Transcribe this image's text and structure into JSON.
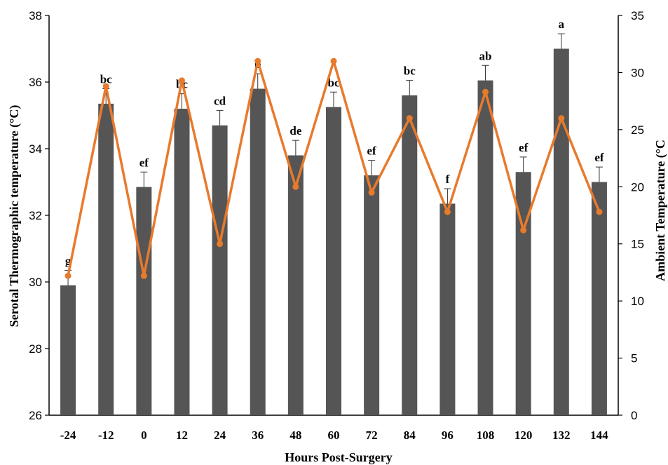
{
  "chart_data": {
    "type": "bar",
    "title": "",
    "xlabel": "Hours Post-Surgery",
    "ylabel": "Serotal Thermographic  temperature  (°C)",
    "y2label": "Ambient  Temperature  (°C",
    "categories": [
      "-24",
      "-12",
      "0",
      "12",
      "24",
      "36",
      "48",
      "60",
      "72",
      "84",
      "96",
      "108",
      "120",
      "132",
      "144"
    ],
    "ylim": [
      26,
      38
    ],
    "yticks": [
      "26",
      "28",
      "30",
      "32",
      "34",
      "36",
      "38"
    ],
    "y2lim": [
      0,
      35
    ],
    "y2ticks": [
      "0",
      "5",
      "10",
      "15",
      "20",
      "25",
      "30",
      "35"
    ],
    "series": [
      {
        "name": "",
        "axis": "left",
        "kind": "bar",
        "values": [
          29.9,
          35.35,
          32.85,
          35.2,
          34.7,
          35.8,
          33.8,
          35.25,
          33.2,
          35.6,
          32.35,
          36.05,
          33.3,
          37.0,
          33.0
        ],
        "errors": [
          0.45,
          0.45,
          0.45,
          0.45,
          0.45,
          0.45,
          0.45,
          0.45,
          0.45,
          0.45,
          0.45,
          0.45,
          0.45,
          0.45,
          0.45
        ],
        "significance": [
          "g",
          "bc",
          "ef",
          "bc",
          "cd",
          "b",
          "de",
          "bc",
          "ef",
          "bc",
          "f",
          "ab",
          "ef",
          "a",
          "ef"
        ],
        "color": "#555555"
      },
      {
        "name": "",
        "axis": "right",
        "kind": "line",
        "values": [
          12.2,
          28.8,
          12.2,
          29.3,
          15.0,
          31.0,
          20.0,
          31.0,
          19.5,
          26.0,
          17.8,
          28.3,
          16.2,
          26.0,
          17.8
        ],
        "color": "#E87A2C"
      }
    ],
    "grid": false,
    "legend": "none"
  }
}
